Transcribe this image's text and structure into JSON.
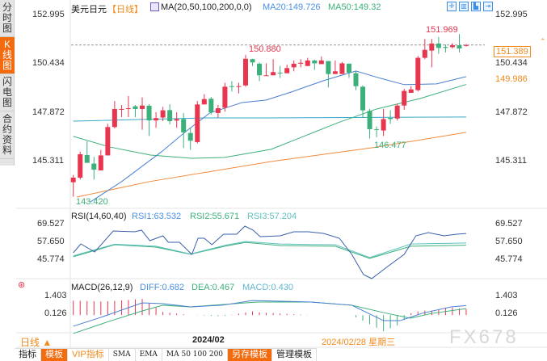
{
  "sidebar": {
    "tabs": [
      {
        "label": "分时图",
        "active": false
      },
      {
        "label": "K线图",
        "active": true
      },
      {
        "label": "闪电图",
        "active": false
      },
      {
        "label": "合约资料",
        "active": false
      }
    ]
  },
  "header": {
    "symbol": "美元日元",
    "period": "【日线】",
    "ma_params": "MA(20,50,100,200,0,0)",
    "ma20": "MA20:149.726",
    "ma50": "MA50:149.32"
  },
  "toolbar_icons": [
    "crosshair-icon",
    "grid-icon",
    "chart-icon",
    "exit-icon"
  ],
  "price_axis": {
    "left_ticks": [
      "152.995",
      "150.434",
      "147.872",
      "145.311"
    ],
    "right_ticks": [
      "152.995",
      "150.434",
      "147.872",
      "145.311"
    ],
    "current_price": "151.389",
    "ma_label": "149.986"
  },
  "annotations": {
    "high1": "150.880",
    "high2": "151.969",
    "low1": "146.477",
    "low2": "143.420"
  },
  "rsi": {
    "params": "RSI(14,60,40)",
    "rsi1": "RSI1:63.532",
    "rsi2": "RSI2:55.671",
    "rsi3": "RSI3:57.204",
    "ticks": [
      "69.527",
      "57.650",
      "45.774"
    ]
  },
  "macd": {
    "params": "MACD(26,12,9)",
    "diff": "DIFF:0.682",
    "dea": "DEA:0.467",
    "macd": "MACD:0.430",
    "ticks": [
      "1.403",
      "0.126"
    ]
  },
  "footer": {
    "period": "日线 ▲",
    "date_tick": "2024/02",
    "cursor_date": "2024/02/28 星期三",
    "watermark": "FX678"
  },
  "toolbar": [
    "指标",
    "模板",
    "VIP指标",
    "SMA",
    "EMA",
    "MA 50 100 200",
    "另存模板",
    "管理模板"
  ],
  "colors": {
    "up": "#e8364f",
    "down": "#3cb07a",
    "ma20": "#4a7fd0",
    "ma50": "#3cb07a",
    "ma100": "#3aa8c8",
    "ma200": "#f08a3c",
    "accent": "#f26b0f",
    "rsi1": "#3a5fa8",
    "rsi2": "#3cb07a",
    "rsi3": "#5fc0c0"
  },
  "chart_data": {
    "type": "candlestick",
    "price_range": [
      145.311,
      152.995
    ],
    "ohlc": [
      [
        144.18,
        144.56,
        143.42,
        144.42
      ],
      [
        144.42,
        145.79,
        144.32,
        145.65
      ],
      [
        145.61,
        146.33,
        145.2,
        145.2
      ],
      [
        145.16,
        145.51,
        144.32,
        144.84
      ],
      [
        144.8,
        145.88,
        144.8,
        145.59
      ],
      [
        145.59,
        147.25,
        145.59,
        147.08
      ],
      [
        147.08,
        148.45,
        147.01,
        148.03
      ],
      [
        148.0,
        148.24,
        147.6,
        148.03
      ],
      [
        148.03,
        148.71,
        147.6,
        148.07
      ],
      [
        148.17,
        148.24,
        147.6,
        148.03
      ],
      [
        148.03,
        148.64,
        146.94,
        148.21
      ],
      [
        148.2,
        148.28,
        146.61,
        147.43
      ],
      [
        147.43,
        147.86,
        147.04,
        147.55
      ],
      [
        147.58,
        148.14,
        147.39,
        147.96
      ],
      [
        147.97,
        148.28,
        147.22,
        147.39
      ],
      [
        147.42,
        147.86,
        147.04,
        147.5
      ],
      [
        147.5,
        147.82,
        145.98,
        146.8
      ],
      [
        146.77,
        147.04,
        145.88,
        146.36
      ],
      [
        146.29,
        148.45,
        146.22,
        148.27
      ],
      [
        148.27,
        148.81,
        148.27,
        148.55
      ],
      [
        148.57,
        148.66,
        147.74,
        147.86
      ],
      [
        147.82,
        148.24,
        147.58,
        148.07
      ],
      [
        148.1,
        149.41,
        147.89,
        149.2
      ],
      [
        149.23,
        149.49,
        148.95,
        149.2
      ],
      [
        149.2,
        149.41,
        148.85,
        149.23
      ],
      [
        149.27,
        150.88,
        149.2,
        150.67
      ],
      [
        150.65,
        150.67,
        150.29,
        150.48
      ],
      [
        150.41,
        150.48,
        149.49,
        149.8
      ],
      [
        149.78,
        150.43,
        149.78,
        149.8
      ],
      [
        149.8,
        150.65,
        149.8,
        149.97
      ],
      [
        149.94,
        150.29,
        149.66,
        149.91
      ],
      [
        149.91,
        150.36,
        149.91,
        150.18
      ],
      [
        150.22,
        150.58,
        150.01,
        150.41
      ],
      [
        150.41,
        150.65,
        150.22,
        150.46
      ],
      [
        150.29,
        150.72,
        150.29,
        150.58
      ],
      [
        150.58,
        150.62,
        150.08,
        150.43
      ],
      [
        150.39,
        150.79,
        150.39,
        150.58
      ],
      [
        150.55,
        150.55,
        149.16,
        149.87
      ],
      [
        149.87,
        150.58,
        149.87,
        150.01
      ],
      [
        149.87,
        150.5,
        149.87,
        150.43
      ],
      [
        150.41,
        150.43,
        149.66,
        149.94
      ],
      [
        149.91,
        150.01,
        149.02,
        149.23
      ],
      [
        149.2,
        149.27,
        147.56,
        147.96
      ],
      [
        147.93,
        148.03,
        146.477,
        146.97
      ],
      [
        146.97,
        147.11,
        146.55,
        146.94
      ],
      [
        146.9,
        148.03,
        146.61,
        147.5
      ],
      [
        147.56,
        147.96,
        147.25,
        147.5
      ],
      [
        147.53,
        148.31,
        147.42,
        148.21
      ],
      [
        148.21,
        149.09,
        147.99,
        148.98
      ],
      [
        148.88,
        149.23,
        148.88,
        149.06
      ],
      [
        149.02,
        150.82,
        148.95,
        150.72
      ],
      [
        150.72,
        151.71,
        150.65,
        151.14
      ],
      [
        151.1,
        151.71,
        150.22,
        151.47
      ],
      [
        151.47,
        151.81,
        150.93,
        151.24
      ],
      [
        151.29,
        151.42,
        151.0,
        151.24
      ],
      [
        151.28,
        151.49,
        151.21,
        151.38
      ],
      [
        151.38,
        151.969,
        151.0,
        151.21
      ],
      [
        151.35,
        151.45,
        151.31,
        151.389
      ]
    ],
    "ma20": [
      [
        2.5,
        143.15
      ],
      [
        7,
        144.21
      ],
      [
        12.8,
        145.78
      ],
      [
        16.3,
        146.84
      ],
      [
        19.8,
        147.82
      ],
      [
        24.5,
        148.37
      ],
      [
        28,
        148.5
      ],
      [
        31.6,
        148.92
      ],
      [
        36.3,
        149.52
      ],
      [
        41,
        150.03
      ],
      [
        44.5,
        149.65
      ],
      [
        48,
        149.31
      ],
      [
        52.7,
        149.35
      ],
      [
        57,
        149.73
      ]
    ],
    "ma50": [
      [
        0,
        146.59
      ],
      [
        5.3,
        146.03
      ],
      [
        11.2,
        145.61
      ],
      [
        17.2,
        145.44
      ],
      [
        21.9,
        145.48
      ],
      [
        28.7,
        145.91
      ],
      [
        38.4,
        147.31
      ],
      [
        44,
        148.03
      ],
      [
        50.3,
        148.58
      ],
      [
        57,
        149.32
      ]
    ],
    "ma100": [
      [
        0,
        147.39
      ],
      [
        19,
        147.56
      ],
      [
        28.7,
        147.56
      ],
      [
        57,
        147.61
      ]
    ],
    "ma200": [
      [
        0.5,
        143.4
      ],
      [
        11,
        144.21
      ],
      [
        28.7,
        145.27
      ],
      [
        43.5,
        146.0
      ],
      [
        57,
        146.8
      ]
    ],
    "rsi_range": [
      45.774,
      69.527
    ],
    "rsi1": [
      [
        0,
        50.63
      ],
      [
        1.1,
        56.57
      ],
      [
        3.1,
        51.17
      ],
      [
        5.8,
        65.21
      ],
      [
        8.9,
        64.67
      ],
      [
        9.9,
        65.75
      ],
      [
        11.1,
        58.73
      ],
      [
        13,
        61.97
      ],
      [
        13.8,
        57.65
      ],
      [
        15.4,
        57.65
      ],
      [
        17.2,
        49.55
      ],
      [
        18.1,
        60.35
      ],
      [
        19,
        60.35
      ],
      [
        20.1,
        56.03
      ],
      [
        21.8,
        63.05
      ],
      [
        23.7,
        63.05
      ],
      [
        24.9,
        68.45
      ],
      [
        26.1,
        65.75
      ],
      [
        27.1,
        61.43
      ],
      [
        30,
        61.97
      ],
      [
        32,
        64.67
      ],
      [
        34.1,
        64.67
      ],
      [
        36.3,
        63.59
      ],
      [
        38.6,
        60.35
      ],
      [
        40.4,
        49.55
      ],
      [
        42.1,
        36.06
      ],
      [
        43.3,
        33.36
      ],
      [
        45.6,
        41.46
      ],
      [
        48,
        49.55
      ],
      [
        49.7,
        61.97
      ],
      [
        51.5,
        64.13
      ],
      [
        53.8,
        61.97
      ],
      [
        55.6,
        63.05
      ],
      [
        57,
        63.53
      ]
    ],
    "rsi2": [
      [
        0,
        48.0
      ],
      [
        6,
        56.0
      ],
      [
        12,
        54.4
      ],
      [
        17,
        49.6
      ],
      [
        22,
        55.0
      ],
      [
        25,
        57.6
      ],
      [
        30,
        55.5
      ],
      [
        38,
        55.0
      ],
      [
        43,
        46.9
      ],
      [
        49,
        55.0
      ],
      [
        57,
        55.67
      ]
    ],
    "rsi3": [
      [
        0,
        48.6
      ],
      [
        6,
        56.4
      ],
      [
        12,
        55.0
      ],
      [
        17,
        49.8
      ],
      [
        22,
        55.6
      ],
      [
        25,
        58.2
      ],
      [
        30,
        56.5
      ],
      [
        38,
        56.0
      ],
      [
        43,
        47.5
      ],
      [
        49,
        56.5
      ],
      [
        57,
        57.2
      ]
    ],
    "macd_ticks": [
      1.403,
      0.126
    ],
    "diff": [
      [
        0,
        -0.8
      ],
      [
        4,
        -0.16
      ],
      [
        10,
        0.88
      ],
      [
        13,
        0.82
      ],
      [
        17,
        0.59
      ],
      [
        21.6,
        0.71
      ],
      [
        26,
        1.05
      ],
      [
        34.5,
        0.94
      ],
      [
        40.4,
        0.71
      ],
      [
        45,
        -0.4
      ],
      [
        47.4,
        -0.4
      ],
      [
        50.6,
        0.13
      ],
      [
        54.8,
        0.59
      ],
      [
        57,
        0.682
      ]
    ],
    "dea": [
      [
        0,
        -1.32
      ],
      [
        5.2,
        -0.45
      ],
      [
        10,
        0.3
      ],
      [
        13,
        0.71
      ],
      [
        17,
        0.59
      ],
      [
        26.7,
        0.94
      ],
      [
        34.5,
        0.94
      ],
      [
        40.4,
        0.71
      ],
      [
        45,
        0.18
      ],
      [
        48.9,
        -0.22
      ],
      [
        52.1,
        0.13
      ],
      [
        57,
        0.467
      ]
    ]
  }
}
